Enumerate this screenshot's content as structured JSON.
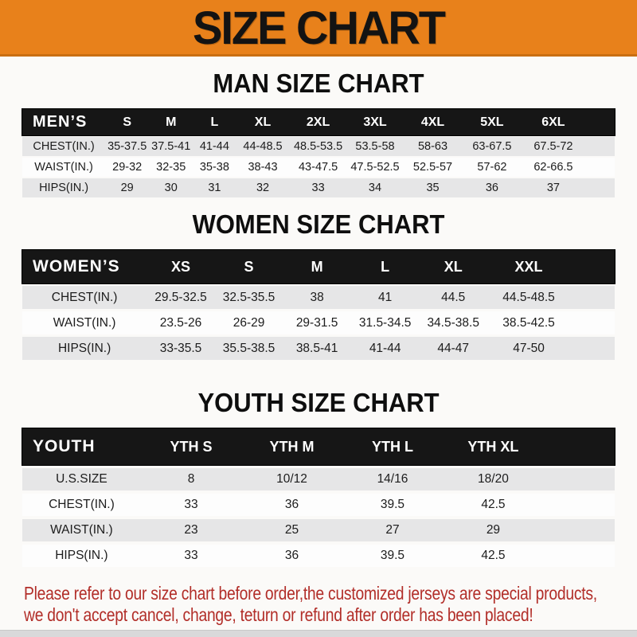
{
  "banner": {
    "title": "SIZE CHART"
  },
  "colors": {
    "banner_bg": "#E8811B",
    "banner_text": "#131313",
    "table_header_bar": "#161616",
    "table_header_text": "#FFFFFF",
    "row_stripe_gray": "#E6E6E7",
    "disclaimer_text": "#B22E29"
  },
  "sections": {
    "men": {
      "heading": "MAN SIZE CHART",
      "table": {
        "header": [
          "MEN’S",
          "S",
          "M",
          "L",
          "XL",
          "2XL",
          "3XL",
          "4XL",
          "5XL",
          "6XL"
        ],
        "rows": [
          {
            "label": "CHEST(IN.)",
            "values": [
              "35-37.5",
              "37.5-41",
              "41-44",
              "44-48.5",
              "48.5-53.5",
              "53.5-58",
              "58-63",
              "63-67.5",
              "67.5-72"
            ]
          },
          {
            "label": "WAIST(IN.)",
            "values": [
              "29-32",
              "32-35",
              "35-38",
              "38-43",
              "43-47.5",
              "47.5-52.5",
              "52.5-57",
              "57-62",
              "62-66.5"
            ]
          },
          {
            "label": "HIPS(IN.)",
            "values": [
              "29",
              "30",
              "31",
              "32",
              "33",
              "34",
              "35",
              "36",
              "37"
            ]
          }
        ]
      }
    },
    "women": {
      "heading": "WOMEN SIZE CHART",
      "table": {
        "header": [
          "WOMEN’S",
          "XS",
          "S",
          "M",
          "L",
          "XL",
          "XXL"
        ],
        "rows": [
          {
            "label": "CHEST(IN.)",
            "values": [
              "29.5-32.5",
              "32.5-35.5",
              "38",
              "41",
              "44.5",
              "44.5-48.5"
            ]
          },
          {
            "label": "WAIST(IN.)",
            "values": [
              "23.5-26",
              "26-29",
              "29-31.5",
              "31.5-34.5",
              "34.5-38.5",
              "38.5-42.5"
            ]
          },
          {
            "label": "HIPS(IN.)",
            "values": [
              "33-35.5",
              "35.5-38.5",
              "38.5-41",
              "41-44",
              "44-47",
              "47-50"
            ]
          }
        ]
      }
    },
    "youth": {
      "heading": "YOUTH SIZE CHART",
      "table": {
        "header": [
          "YOUTH",
          "YTH S",
          "YTH M",
          "YTH L",
          "YTH XL"
        ],
        "rows": [
          {
            "label": "U.S.SIZE",
            "values": [
              "8",
              "10/12",
              "14/16",
              "18/20"
            ]
          },
          {
            "label": "CHEST(IN.)",
            "values": [
              "33",
              "36",
              "39.5",
              "42.5"
            ]
          },
          {
            "label": "WAIST(IN.)",
            "values": [
              "23",
              "25",
              "27",
              "29"
            ]
          },
          {
            "label": "HIPS(IN.)",
            "values": [
              "33",
              "36",
              "39.5",
              "42.5"
            ]
          }
        ]
      }
    }
  },
  "disclaimer": {
    "line1": "Please refer to our size chart before order,the customized jerseys are special products,",
    "line2": "we don't accept cancel, change, teturn or refund after order has been placed!"
  }
}
